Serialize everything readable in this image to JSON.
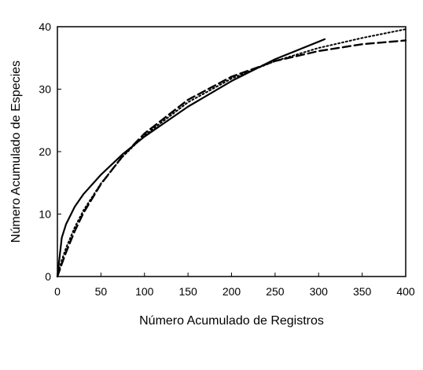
{
  "chart_data": {
    "type": "line",
    "title": "",
    "xlabel": "Número Acumulado de Registros",
    "ylabel": "Número Acumulado de Especies",
    "xlim": [
      0,
      400
    ],
    "ylim": [
      0,
      40
    ],
    "xticks": [
      "0",
      "50",
      "100",
      "150",
      "200",
      "250",
      "300",
      "350",
      "400"
    ],
    "yticks": [
      "0",
      "10",
      "20",
      "30",
      "40"
    ],
    "grid": false,
    "legend": "none",
    "series": [
      {
        "style": "solid",
        "color": "#000000",
        "x": [
          0,
          5,
          10,
          20,
          30,
          50,
          75,
          100,
          150,
          200,
          250,
          300,
          307
        ],
        "y": [
          0,
          6.2,
          8.4,
          11.2,
          13.2,
          16.3,
          19.6,
          22.4,
          27.2,
          31.3,
          34.8,
          37.6,
          38.0
        ]
      },
      {
        "style": "dashed",
        "color": "#000000",
        "x": [
          0,
          5,
          10,
          20,
          30,
          50,
          75,
          100,
          150,
          200,
          250,
          300,
          350,
          400
        ],
        "y": [
          0,
          2.0,
          3.9,
          7.3,
          10.2,
          14.8,
          19.3,
          22.9,
          28.3,
          32.0,
          34.5,
          36.1,
          37.2,
          37.8
        ]
      },
      {
        "style": "dotted",
        "color": "#000000",
        "x": [
          0,
          5,
          10,
          20,
          30,
          50,
          75,
          100,
          150,
          200,
          250,
          300,
          350,
          400
        ],
        "y": [
          0,
          2.6,
          4.6,
          7.9,
          10.6,
          14.9,
          19.2,
          22.6,
          27.9,
          31.7,
          34.5,
          36.6,
          38.2,
          39.6
        ]
      }
    ]
  }
}
